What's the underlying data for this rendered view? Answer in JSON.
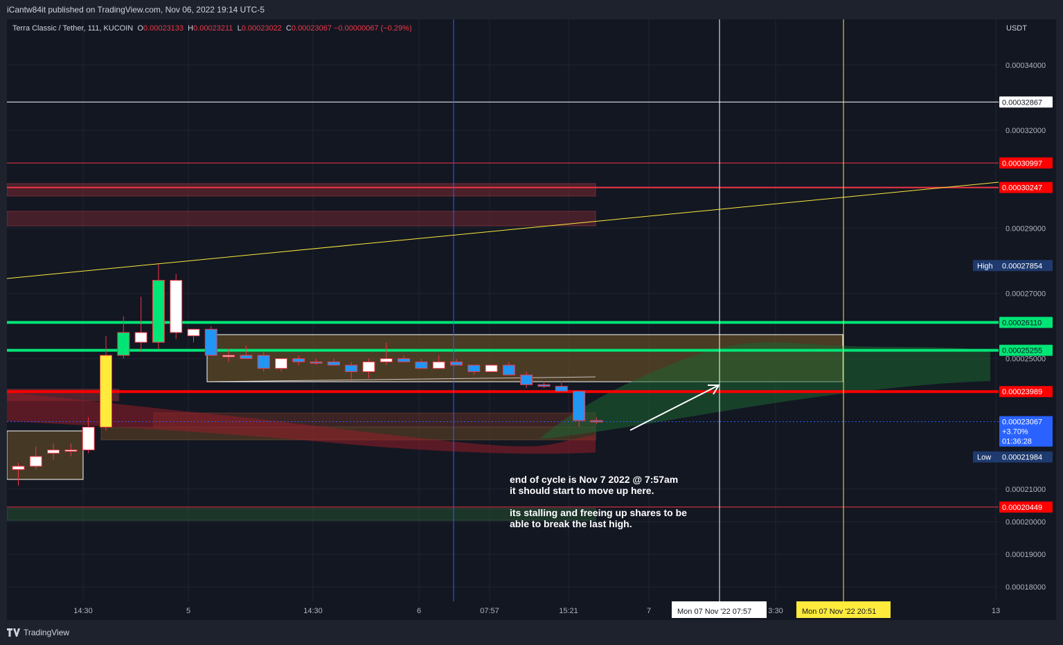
{
  "header": {
    "published": "iCantw84it published on TradingView.com, Nov 06, 2022 19:14 UTC-5"
  },
  "legend": {
    "symbol": "Terra Classic / Tether, 111, KUCOIN",
    "o_label": "O",
    "o_value": "0.00023133",
    "h_label": "H",
    "h_value": "0.00023211",
    "l_label": "L",
    "l_value": "0.00023022",
    "c_label": "C",
    "c_value": "0.00023067",
    "change": "−0.00000067 (−0.29%)"
  },
  "footer": {
    "brand": "TradingView"
  },
  "annotation": {
    "line1": "end of cycle is Nov 7 2022 @ 7:57am",
    "line2": "it should start to move up here.",
    "line3": "its stalling and freeing up shares to be",
    "line4": "able to break the last high."
  },
  "colors": {
    "background": "#131722",
    "up": "#00e676",
    "down": "#f23645",
    "accent_blue": "#2962ff",
    "yellow": "#ffeb3b"
  },
  "chart_data": {
    "type": "candlestick",
    "currency": "USDT",
    "ylim": [
      0.000176,
      0.000354
    ],
    "y_ticks": [
      "0.00034000",
      "0.00032000",
      "0.00029000",
      "0.00027000",
      "0.00025000",
      "0.00021000",
      "0.00020000",
      "0.00019000",
      "0.00018000"
    ],
    "x_ticks": [
      "14:30",
      "5",
      "14:30",
      "6",
      "07:57",
      "15:21",
      "7",
      "3:30",
      "13"
    ],
    "price_labels": [
      {
        "value": "0.00032867",
        "style": "white"
      },
      {
        "value": "0.00030997",
        "style": "red"
      },
      {
        "value": "0.00030247",
        "style": "red"
      },
      {
        "value": "0.00027854",
        "style": "navy",
        "tag": "High"
      },
      {
        "value": "0.00026110",
        "style": "green"
      },
      {
        "value": "0.00025255",
        "style": "green"
      },
      {
        "value": "0.00023989",
        "style": "red"
      },
      {
        "value": "0.00023067",
        "style": "blue",
        "sub1": "+3.70%",
        "sub2": "01:36:28"
      },
      {
        "value": "0.00021984",
        "style": "navy",
        "tag": "Low"
      },
      {
        "value": "0.00020449",
        "style": "red"
      }
    ],
    "date_labels": [
      {
        "text": "Mon 07 Nov '22   07:57",
        "style": "white"
      },
      {
        "text": "Mon 07 Nov '22   20:51",
        "style": "yellow"
      }
    ],
    "horizontal_levels": [
      {
        "price": 0.00032867,
        "color": "#ffffff",
        "width": 1
      },
      {
        "price": 0.00030997,
        "color": "#f23645",
        "width": 1
      },
      {
        "price": 0.00030247,
        "color": "#f23645",
        "width": 2
      },
      {
        "price": 0.0002611,
        "color": "#00e676",
        "width": 4
      },
      {
        "price": 0.00025255,
        "color": "#00e676",
        "width": 4
      },
      {
        "price": 0.00023989,
        "color": "#ff0000",
        "width": 4
      },
      {
        "price": 0.00020449,
        "color": "#f23645",
        "width": 1
      },
      {
        "price": 0.00023067,
        "color": "#2962ff",
        "width": 1,
        "dotted": true
      }
    ],
    "candles": [
      {
        "o": 0.000216,
        "h": 0.000218,
        "l": 0.000211,
        "c": 0.000217
      },
      {
        "o": 0.000217,
        "h": 0.000223,
        "l": 0.000216,
        "c": 0.00022
      },
      {
        "o": 0.000221,
        "h": 0.000224,
        "l": 0.000219,
        "c": 0.000222
      },
      {
        "o": 0.000222,
        "h": 0.000224,
        "l": 0.00022,
        "c": 0.000222
      },
      {
        "o": 0.000222,
        "h": 0.000232,
        "l": 0.000221,
        "c": 0.000229
      },
      {
        "o": 0.000229,
        "h": 0.000257,
        "l": 0.000228,
        "c": 0.000251
      },
      {
        "o": 0.000251,
        "h": 0.000263,
        "l": 0.00025,
        "c": 0.000258
      },
      {
        "o": 0.000258,
        "h": 0.000269,
        "l": 0.000252,
        "c": 0.000255
      },
      {
        "o": 0.000255,
        "h": 0.000279,
        "l": 0.000253,
        "c": 0.000274
      },
      {
        "o": 0.000274,
        "h": 0.000276,
        "l": 0.000256,
        "c": 0.000258
      },
      {
        "o": 0.000257,
        "h": 0.000259,
        "l": 0.000255,
        "c": 0.000259
      },
      {
        "o": 0.000259,
        "h": 0.00026,
        "l": 0.000251,
        "c": 0.000251
      },
      {
        "o": 0.000251,
        "h": 0.000253,
        "l": 0.000249,
        "c": 0.000251
      },
      {
        "o": 0.000251,
        "h": 0.000254,
        "l": 0.00025,
        "c": 0.00025
      },
      {
        "o": 0.000251,
        "h": 0.000252,
        "l": 0.000246,
        "c": 0.000247
      },
      {
        "o": 0.000247,
        "h": 0.00025,
        "l": 0.000246,
        "c": 0.00025
      },
      {
        "o": 0.00025,
        "h": 0.000251,
        "l": 0.000248,
        "c": 0.000249
      },
      {
        "o": 0.000249,
        "h": 0.00025,
        "l": 0.000248,
        "c": 0.0002488
      },
      {
        "o": 0.000249,
        "h": 0.00025,
        "l": 0.000248,
        "c": 0.000248
      },
      {
        "o": 0.000248,
        "h": 0.000249,
        "l": 0.000243,
        "c": 0.000246
      },
      {
        "o": 0.000246,
        "h": 0.00025,
        "l": 0.000244,
        "c": 0.000249
      },
      {
        "o": 0.000249,
        "h": 0.000255,
        "l": 0.000248,
        "c": 0.00025
      },
      {
        "o": 0.00025,
        "h": 0.000251,
        "l": 0.000249,
        "c": 0.000249
      },
      {
        "o": 0.000249,
        "h": 0.00025,
        "l": 0.000247,
        "c": 0.000247
      },
      {
        "o": 0.000247,
        "h": 0.000251,
        "l": 0.000247,
        "c": 0.000249
      },
      {
        "o": 0.000249,
        "h": 0.00025,
        "l": 0.000248,
        "c": 0.000248
      },
      {
        "o": 0.000248,
        "h": 0.000248,
        "l": 0.000245,
        "c": 0.000246
      },
      {
        "o": 0.000246,
        "h": 0.000248,
        "l": 0.000246,
        "c": 0.000248
      },
      {
        "o": 0.000248,
        "h": 0.000249,
        "l": 0.000245,
        "c": 0.000245
      },
      {
        "o": 0.000245,
        "h": 0.000246,
        "l": 0.000241,
        "c": 0.000242
      },
      {
        "o": 0.000242,
        "h": 0.000243,
        "l": 0.000241,
        "c": 0.0002415
      },
      {
        "o": 0.0002415,
        "h": 0.000243,
        "l": 0.00024,
        "c": 0.00024
      },
      {
        "o": 0.00024,
        "h": 0.00024,
        "l": 0.000229,
        "c": 0.000231
      },
      {
        "o": 0.000231,
        "h": 0.000232,
        "l": 0.00023,
        "c": 0.0002307
      }
    ]
  }
}
